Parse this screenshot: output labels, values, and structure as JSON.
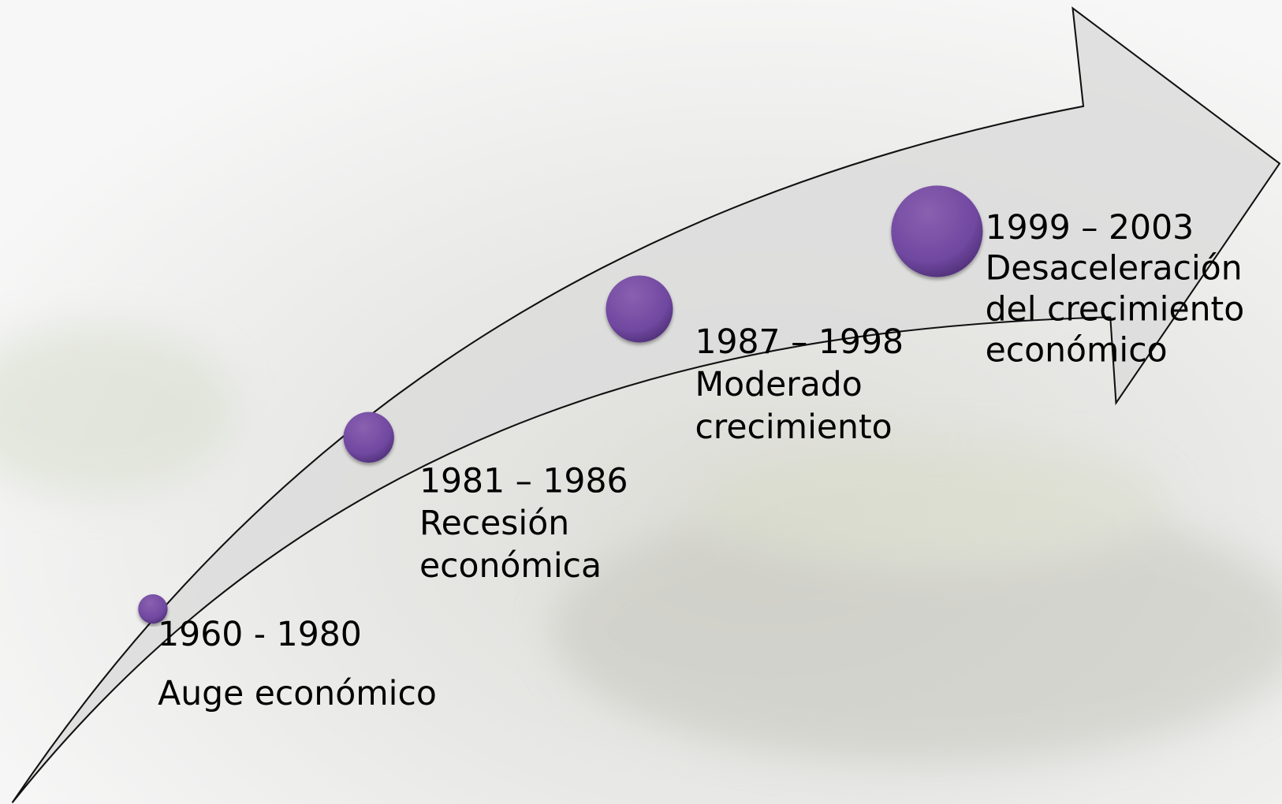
{
  "stages": [
    {
      "period": "1960 - 1980",
      "lines": [
        "Auge económico"
      ]
    },
    {
      "period": "1981 – 1986",
      "lines": [
        "Recesión",
        "económica"
      ]
    },
    {
      "period": "1987 – 1998",
      "lines": [
        "Moderado",
        "crecimiento"
      ]
    },
    {
      "period": "1999 – 2003",
      "lines": [
        "Desaceleración",
        "del crecimiento",
        "económico"
      ]
    }
  ]
}
